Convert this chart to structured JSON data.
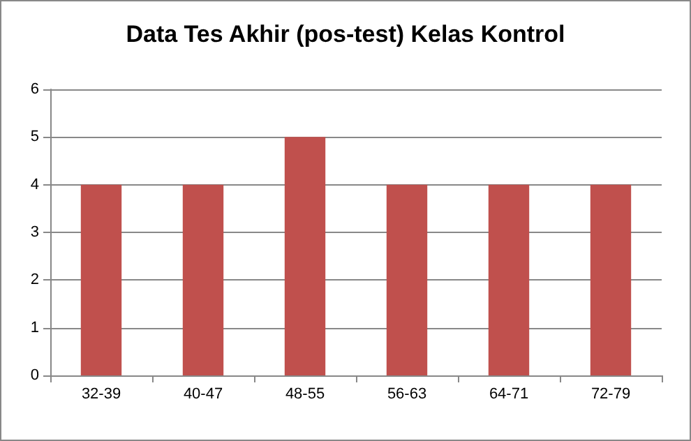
{
  "chart_data": {
    "type": "bar",
    "title": "Data Tes Akhir (pos-test) Kelas Kontrol",
    "categories": [
      "32-39",
      "40-47",
      "48-55",
      "56-63",
      "64-71",
      "72-79"
    ],
    "values": [
      4,
      4,
      5,
      4,
      4,
      4
    ],
    "color": "#c0504d",
    "ylim": [
      0,
      6
    ],
    "yticks": [
      0,
      1,
      2,
      3,
      4,
      5,
      6
    ],
    "grid": "y"
  }
}
